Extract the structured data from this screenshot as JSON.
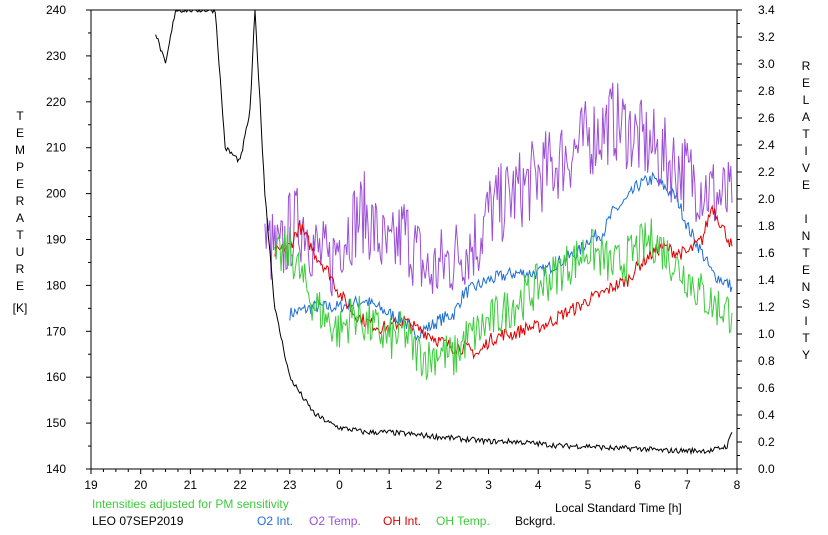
{
  "chart_data": {
    "type": "line",
    "left_axis_label": "TEMPERATURE",
    "left_axis_unit": "[K]",
    "right_axis_label": "RELATIVE INTENSITY",
    "xlabel": "Local Standard Time [h]",
    "note": "Intensities adjusted for PM sensitivity",
    "station_date": "LEO 07SEP2019",
    "x_ticks": [
      19,
      20,
      21,
      22,
      23,
      0,
      1,
      2,
      3,
      4,
      5,
      6,
      7,
      8
    ],
    "x_tick_labels": [
      "19",
      "20",
      "21",
      "22",
      "23",
      "0",
      "1",
      "2",
      "3",
      "4",
      "5",
      "6",
      "7",
      "8"
    ],
    "y_left_ticks": [
      "240",
      "230",
      "220",
      "210",
      "200",
      "190",
      "180",
      "170",
      "160",
      "150",
      "140"
    ],
    "y_right_ticks": [
      "3.4",
      "3.2",
      "3.0",
      "2.8",
      "2.6",
      "2.4",
      "2.2",
      "2.0",
      "1.8",
      "1.6",
      "1.4",
      "1.2",
      "1.0",
      "0.8",
      "0.6",
      "0.4",
      "0.2",
      "0.0"
    ],
    "xlim": [
      19,
      32
    ],
    "ylim_left": [
      140,
      240
    ],
    "ylim_right": [
      0,
      3.4
    ],
    "series": [
      {
        "name": "O2 Int.",
        "axis": "right",
        "color": "#1f6fd6",
        "x": [
          23.0,
          23.5,
          24.0,
          24.5,
          25.0,
          25.3,
          25.5,
          25.8,
          26.0,
          26.3,
          26.5,
          27.0,
          27.5,
          28.0,
          28.5,
          28.8,
          29.0,
          29.3,
          29.5,
          29.8,
          30.0,
          30.3,
          30.5,
          30.8,
          31.0,
          31.3,
          31.5,
          31.9
        ],
        "y": [
          1.15,
          1.2,
          1.2,
          1.25,
          1.15,
          1.1,
          1.0,
          1.05,
          1.1,
          1.15,
          1.3,
          1.4,
          1.45,
          1.45,
          1.55,
          1.6,
          1.7,
          1.75,
          1.9,
          2.0,
          2.1,
          2.15,
          2.1,
          2.0,
          1.8,
          1.6,
          1.45,
          1.35
        ]
      },
      {
        "name": "O2 Temp.",
        "axis": "left",
        "color": "#9c4fd6",
        "x": [
          22.5,
          22.8,
          23.0,
          23.3,
          23.5,
          23.8,
          24.0,
          24.3,
          24.5,
          24.8,
          25.0,
          25.3,
          25.5,
          25.8,
          26.0,
          26.3,
          26.5,
          26.8,
          27.0,
          27.3,
          27.5,
          27.8,
          28.0,
          28.3,
          28.5,
          28.8,
          29.0,
          29.3,
          29.5,
          29.8,
          30.0,
          30.3,
          30.5,
          30.8,
          31.0,
          31.3,
          31.5,
          31.9
        ],
        "y": [
          190,
          186,
          192,
          194,
          188,
          184,
          190,
          194,
          196,
          190,
          186,
          192,
          188,
          182,
          184,
          186,
          188,
          190,
          196,
          198,
          200,
          202,
          204,
          206,
          208,
          210,
          212,
          214,
          216,
          214,
          212,
          210,
          208,
          206,
          204,
          202,
          200,
          198
        ]
      },
      {
        "name": "OH Int.",
        "axis": "right",
        "color": "#e00000",
        "x": [
          22.7,
          23.0,
          23.2,
          23.5,
          23.8,
          24.0,
          24.3,
          24.5,
          24.8,
          25.0,
          25.3,
          25.5,
          25.8,
          26.0,
          26.3,
          26.5,
          26.8,
          27.0,
          27.3,
          27.5,
          27.8,
          28.0,
          28.3,
          28.5,
          28.8,
          29.0,
          29.3,
          29.5,
          29.8,
          30.0,
          30.3,
          30.5,
          30.8,
          31.0,
          31.3,
          31.5,
          31.9
        ],
        "y": [
          1.6,
          1.65,
          1.8,
          1.6,
          1.45,
          1.3,
          1.15,
          1.1,
          1.05,
          1.05,
          1.1,
          1.05,
          1.0,
          0.95,
          0.9,
          0.9,
          0.85,
          0.95,
          1.0,
          1.0,
          1.05,
          1.05,
          1.1,
          1.15,
          1.2,
          1.25,
          1.3,
          1.35,
          1.4,
          1.5,
          1.6,
          1.65,
          1.6,
          1.6,
          1.7,
          1.95,
          1.65
        ]
      },
      {
        "name": "OH Temp.",
        "axis": "left",
        "color": "#3dcc3d",
        "x": [
          22.7,
          23.0,
          23.3,
          23.5,
          23.8,
          24.0,
          24.3,
          24.5,
          24.8,
          25.0,
          25.3,
          25.5,
          25.8,
          26.0,
          26.3,
          26.5,
          26.8,
          27.0,
          27.3,
          27.5,
          27.8,
          28.0,
          28.3,
          28.5,
          28.8,
          29.0,
          29.3,
          29.5,
          29.8,
          30.0,
          30.3,
          30.5,
          30.8,
          31.0,
          31.3,
          31.5,
          31.9
        ],
        "y": [
          185,
          188,
          180,
          176,
          172,
          170,
          174,
          172,
          170,
          168,
          170,
          166,
          164,
          166,
          164,
          168,
          170,
          172,
          174,
          176,
          178,
          180,
          182,
          184,
          186,
          188,
          186,
          184,
          186,
          188,
          190,
          188,
          184,
          182,
          178,
          176,
          174
        ]
      },
      {
        "name": "Bckgrd.",
        "axis": "left",
        "color": "#000000",
        "x": [
          20.3,
          20.5,
          20.7,
          21.0,
          21.2,
          21.5,
          21.7,
          22.0,
          22.2,
          22.3,
          22.5,
          22.7,
          23.0,
          23.3,
          23.5,
          23.8,
          24.0,
          24.3,
          24.5,
          25.0,
          25.5,
          26.0,
          26.5,
          27.0,
          27.5,
          28.0,
          28.5,
          29.0,
          29.5,
          30.0,
          30.5,
          31.0,
          31.5,
          31.8,
          31.9
        ],
        "y": [
          235,
          228,
          240,
          240,
          240,
          240,
          210,
          207,
          218,
          240,
          200,
          175,
          160,
          155,
          152,
          150,
          149,
          148.5,
          148,
          148,
          147.5,
          147,
          146.5,
          146,
          146,
          145.5,
          145,
          145,
          144.5,
          144.5,
          144,
          144,
          144,
          145,
          148
        ]
      }
    ]
  },
  "legend": {
    "o2_int": "O2 Int.",
    "o2_temp": "O2 Temp.",
    "oh_int": "OH Int.",
    "oh_temp": "OH Temp.",
    "bckgrd": "Bckgrd."
  },
  "colors": {
    "o2_int": "#1f6fd6",
    "o2_temp": "#9c4fd6",
    "oh_int": "#e00000",
    "oh_temp": "#3dcc3d",
    "bckgrd": "#000000"
  }
}
